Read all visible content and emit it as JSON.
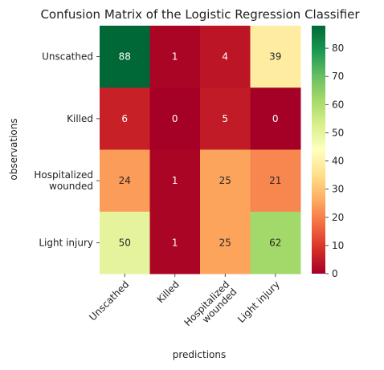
{
  "chart_data": {
    "type": "heatmap",
    "title": "Confusion Matrix of the Logistic Regression Classifier",
    "xlabel": "predictions",
    "ylabel": "observations",
    "row_labels": [
      [
        "Unscathed"
      ],
      [
        "Killed"
      ],
      [
        "Hospitalized",
        "wounded"
      ],
      [
        "Light injury"
      ]
    ],
    "col_labels": [
      [
        "Unscathed"
      ],
      [
        "Killed"
      ],
      [
        "Hospitalized",
        "wounded"
      ],
      [
        "Light injury"
      ]
    ],
    "values": [
      [
        88,
        1,
        4,
        39
      ],
      [
        6,
        0,
        5,
        0
      ],
      [
        24,
        1,
        25,
        21
      ],
      [
        50,
        1,
        25,
        62
      ]
    ],
    "colormap": "RdYlGn",
    "colorbar": {
      "min": 0,
      "max": 88,
      "ticks": [
        0,
        10,
        20,
        30,
        40,
        50,
        60,
        70,
        80
      ]
    }
  }
}
